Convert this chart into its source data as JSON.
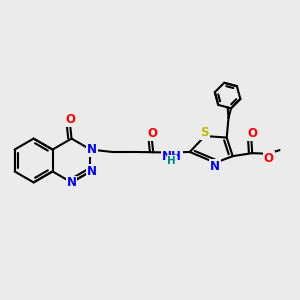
{
  "bg_color": "#ebebeb",
  "bond_color": "#000000",
  "bond_width": 1.5,
  "atom_colors": {
    "N": "#0000ff",
    "O": "#ff0000",
    "S": "#bbbb00",
    "H": "#008888",
    "C": "#000000"
  },
  "font_size": 8.5,
  "font_size_small": 7.5
}
